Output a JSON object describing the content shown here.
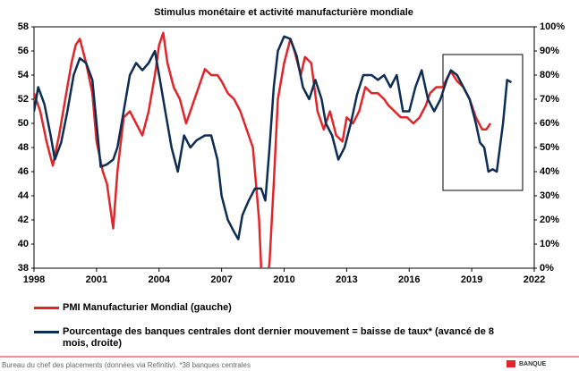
{
  "chart_data": {
    "type": "line",
    "title": "Stimulus  monétaire et activité manufacturière mondiale",
    "xlim": [
      1998,
      2022
    ],
    "xticks": [
      1998,
      2001,
      2004,
      2007,
      2010,
      2013,
      2016,
      2019,
      2022
    ],
    "ylim": [
      38,
      58
    ],
    "yticks": [
      38,
      40,
      42,
      44,
      46,
      48,
      50,
      52,
      54,
      56,
      58
    ],
    "y2lim": [
      0,
      100
    ],
    "y2ticks": [
      {
        "value": 0,
        "label": "0%"
      },
      {
        "value": 10,
        "label": "10%"
      },
      {
        "value": 20,
        "label": "20%"
      },
      {
        "value": 30,
        "label": "30%"
      },
      {
        "value": 40,
        "label": "40%"
      },
      {
        "value": 50,
        "label": "50%"
      },
      {
        "value": 60,
        "label": "60%"
      },
      {
        "value": 70,
        "label": "70%"
      },
      {
        "value": 80,
        "label": "80%"
      },
      {
        "value": 90,
        "label": "90%"
      },
      {
        "value": 100,
        "label": "100%"
      }
    ],
    "series": [
      {
        "name": "PMI Manufacturier Mondial (gauche)",
        "color": "#e0262b",
        "x": [
          1998.0,
          1998.3,
          1998.6,
          1998.9,
          1999.2,
          1999.5,
          1999.8,
          2000.0,
          2000.2,
          2000.5,
          2000.8,
          2001.0,
          2001.3,
          2001.5,
          2001.8,
          2002.0,
          2002.3,
          2002.6,
          2002.9,
          2003.2,
          2003.5,
          2003.8,
          2004.0,
          2004.2,
          2004.4,
          2004.7,
          2005.0,
          2005.3,
          2005.6,
          2005.9,
          2006.2,
          2006.5,
          2006.8,
          2007.0,
          2007.3,
          2007.6,
          2007.9,
          2008.2,
          2008.5,
          2008.8,
          2009.0,
          2009.3,
          2009.5,
          2009.7,
          2010.0,
          2010.3,
          2010.5,
          2010.8,
          2011.0,
          2011.3,
          2011.6,
          2011.9,
          2012.2,
          2012.5,
          2012.8,
          2013.0,
          2013.3,
          2013.6,
          2013.9,
          2014.2,
          2014.5,
          2014.8,
          2015.0,
          2015.3,
          2015.6,
          2015.9,
          2016.2,
          2016.5,
          2016.8,
          2017.0,
          2017.3,
          2017.6,
          2017.9,
          2018.0,
          2018.3,
          2018.6,
          2018.9,
          2019.2,
          2019.5,
          2019.7,
          2019.9
        ],
        "values": [
          52.5,
          51,
          48.5,
          46.5,
          49,
          52,
          55,
          56.5,
          57,
          55,
          52.5,
          48.5,
          46,
          45,
          41.3,
          46,
          50.5,
          51,
          50,
          49,
          51,
          54,
          56.5,
          57.5,
          55,
          53,
          52,
          50,
          51.5,
          53,
          54.5,
          54,
          54,
          53.5,
          52.5,
          52,
          51,
          49.5,
          48,
          42,
          34,
          38.5,
          45,
          52,
          55,
          57,
          56,
          54,
          55.5,
          55,
          51,
          49.5,
          51,
          49,
          48.5,
          50.5,
          50,
          51,
          53,
          52.5,
          52.5,
          52,
          51.5,
          51,
          50.5,
          50.5,
          50,
          50.5,
          51.5,
          52.5,
          53,
          53,
          54,
          54.3,
          53.5,
          53,
          52,
          50.5,
          49.5,
          49.5,
          50
        ]
      },
      {
        "name": "Pourcentage des banques centrales dont dernier mouvement = baisse de taux* (avancé de 8 mois, droite)",
        "color": "#0d2d52",
        "axis": "y2",
        "x": [
          1998.0,
          1998.2,
          1998.5,
          1998.8,
          1999.0,
          1999.3,
          1999.6,
          1999.9,
          2000.2,
          2000.5,
          2000.8,
          2001.0,
          2001.2,
          2001.5,
          2001.8,
          2002.0,
          2002.3,
          2002.6,
          2002.9,
          2003.2,
          2003.5,
          2003.8,
          2004.0,
          2004.3,
          2004.6,
          2004.9,
          2005.2,
          2005.5,
          2005.8,
          2006.2,
          2006.5,
          2006.8,
          2007.0,
          2007.3,
          2007.6,
          2007.8,
          2008.0,
          2008.3,
          2008.6,
          2008.9,
          2009.1,
          2009.3,
          2009.5,
          2009.7,
          2010.0,
          2010.3,
          2010.6,
          2010.9,
          2011.2,
          2011.5,
          2011.8,
          2012.0,
          2012.3,
          2012.6,
          2012.9,
          2013.2,
          2013.5,
          2013.8,
          2014.2,
          2014.5,
          2014.8,
          2015.1,
          2015.4,
          2015.7,
          2016.0,
          2016.3,
          2016.6,
          2016.9,
          2017.2,
          2017.5,
          2017.8,
          2018.0,
          2018.3,
          2018.6,
          2018.9,
          2019.2,
          2019.4,
          2019.6,
          2019.8,
          2020.0,
          2020.2,
          2020.5,
          2020.7,
          2020.9
        ],
        "values": [
          65,
          75,
          68,
          55,
          45,
          52,
          65,
          80,
          87,
          85,
          78,
          60,
          42,
          43,
          45,
          50,
          65,
          80,
          85,
          82,
          85,
          90,
          80,
          65,
          50,
          40,
          55,
          50,
          53,
          55,
          55,
          45,
          30,
          20,
          15,
          12,
          22,
          28,
          33,
          33,
          28,
          50,
          75,
          90,
          96,
          95,
          88,
          75,
          70,
          78,
          70,
          60,
          55,
          45,
          50,
          60,
          72,
          80,
          80,
          78,
          80,
          75,
          80,
          65,
          65,
          75,
          82,
          70,
          65,
          70,
          78,
          82,
          80,
          75,
          70,
          60,
          52,
          50,
          40,
          41,
          40,
          60,
          78,
          77
        ]
      }
    ],
    "source": "Bureau du chef des placements (données via Refinitiv). *38 banques centrales",
    "logo": "BANQUE"
  }
}
